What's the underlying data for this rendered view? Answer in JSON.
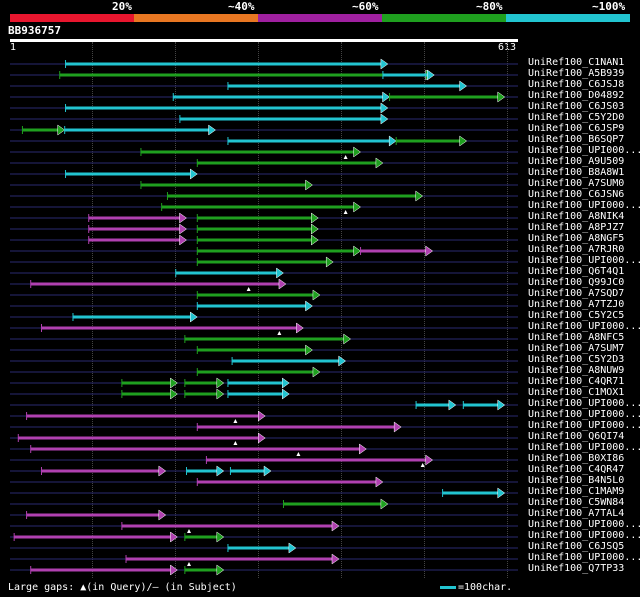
{
  "legend": {
    "segments": [
      {
        "label": "20%",
        "color": "#e8162e"
      },
      {
        "label": "~40%",
        "color": "#e87722"
      },
      {
        "label": "~60%",
        "color": "#a020a0"
      },
      {
        "label": "~80%",
        "color": "#1fa01f"
      },
      {
        "label": "~100%",
        "color": "#22c4d0"
      }
    ]
  },
  "query": {
    "id": "BB936757",
    "start_label": "1",
    "end_label": "613",
    "length": 613
  },
  "hits": [
    {
      "name": "UniRef100_C1NAN1",
      "segs": [
        {
          "s": 67,
          "e": 456,
          "c": "cyan"
        }
      ],
      "marks": []
    },
    {
      "name": "UniRef100_A5B939",
      "segs": [
        {
          "s": 60,
          "e": 510,
          "c": "green"
        },
        {
          "s": 450,
          "e": 512,
          "c": "cyan"
        }
      ],
      "marks": []
    },
    {
      "name": "UniRef100_C6JSJ8",
      "segs": [
        {
          "s": 263,
          "e": 551,
          "c": "cyan"
        }
      ],
      "marks": []
    },
    {
      "name": "UniRef100_D04892",
      "segs": [
        {
          "s": 197,
          "e": 458,
          "c": "cyan"
        },
        {
          "s": 458,
          "e": 597,
          "c": "green"
        }
      ],
      "marks": []
    },
    {
      "name": "UniRef100_C6JS03",
      "segs": [
        {
          "s": 67,
          "e": 456,
          "c": "cyan"
        }
      ],
      "marks": []
    },
    {
      "name": "UniRef100_C5Y2D0",
      "segs": [
        {
          "s": 205,
          "e": 456,
          "c": "cyan"
        }
      ],
      "marks": []
    },
    {
      "name": "UniRef100_C6JSP9",
      "segs": [
        {
          "s": 15,
          "e": 66,
          "c": "green"
        },
        {
          "s": 66,
          "e": 248,
          "c": "cyan"
        }
      ],
      "marks": []
    },
    {
      "name": "UniRef100_B6SQP7",
      "segs": [
        {
          "s": 263,
          "e": 466,
          "c": "cyan"
        },
        {
          "s": 466,
          "e": 551,
          "c": "green"
        }
      ],
      "marks": []
    },
    {
      "name": "UniRef100_UPI000...",
      "segs": [
        {
          "s": 158,
          "e": 423,
          "c": "green"
        }
      ],
      "marks": [
        405
      ]
    },
    {
      "name": "UniRef100_A9U509",
      "segs": [
        {
          "s": 226,
          "e": 450,
          "c": "green"
        }
      ],
      "marks": []
    },
    {
      "name": "UniRef100_B8A8W1",
      "segs": [
        {
          "s": 67,
          "e": 226,
          "c": "cyan"
        }
      ],
      "marks": []
    },
    {
      "name": "UniRef100_A7SUM0",
      "segs": [
        {
          "s": 158,
          "e": 365,
          "c": "green"
        }
      ],
      "marks": []
    },
    {
      "name": "UniRef100_C6JSN6",
      "segs": [
        {
          "s": 190,
          "e": 498,
          "c": "green"
        }
      ],
      "marks": []
    },
    {
      "name": "UniRef100_UPI000...",
      "segs": [
        {
          "s": 183,
          "e": 423,
          "c": "green"
        }
      ],
      "marks": [
        405
      ]
    },
    {
      "name": "UniRef100_A8NIK4",
      "segs": [
        {
          "s": 95,
          "e": 213,
          "c": "magenta"
        },
        {
          "s": 226,
          "e": 372,
          "c": "green"
        }
      ],
      "marks": []
    },
    {
      "name": "UniRef100_A8PJZ7",
      "segs": [
        {
          "s": 95,
          "e": 213,
          "c": "magenta"
        },
        {
          "s": 226,
          "e": 372,
          "c": "green"
        }
      ],
      "marks": []
    },
    {
      "name": "UniRef100_A8NGF5",
      "segs": [
        {
          "s": 95,
          "e": 213,
          "c": "magenta"
        },
        {
          "s": 226,
          "e": 372,
          "c": "green"
        }
      ],
      "marks": []
    },
    {
      "name": "UniRef100_A7RJR0",
      "segs": [
        {
          "s": 226,
          "e": 423,
          "c": "green"
        },
        {
          "s": 423,
          "e": 510,
          "c": "magenta"
        }
      ],
      "marks": []
    },
    {
      "name": "UniRef100_UPI000...",
      "segs": [
        {
          "s": 226,
          "e": 390,
          "c": "green"
        }
      ],
      "marks": []
    },
    {
      "name": "UniRef100_Q6T4Q1",
      "segs": [
        {
          "s": 200,
          "e": 330,
          "c": "cyan"
        }
      ],
      "marks": []
    },
    {
      "name": "UniRef100_Q99JC0",
      "segs": [
        {
          "s": 25,
          "e": 333,
          "c": "magenta"
        }
      ],
      "marks": [
        288
      ]
    },
    {
      "name": "UniRef100_A7SQD7",
      "segs": [
        {
          "s": 226,
          "e": 374,
          "c": "green"
        }
      ],
      "marks": []
    },
    {
      "name": "UniRef100_A7TZJ0",
      "segs": [
        {
          "s": 226,
          "e": 365,
          "c": "cyan"
        }
      ],
      "marks": []
    },
    {
      "name": "UniRef100_C5Y2C5",
      "segs": [
        {
          "s": 76,
          "e": 226,
          "c": "cyan"
        }
      ],
      "marks": []
    },
    {
      "name": "UniRef100_UPI000...",
      "segs": [
        {
          "s": 38,
          "e": 354,
          "c": "magenta"
        }
      ],
      "marks": [
        325
      ]
    },
    {
      "name": "UniRef100_A8NFC5",
      "segs": [
        {
          "s": 211,
          "e": 411,
          "c": "green"
        }
      ],
      "marks": []
    },
    {
      "name": "UniRef100_A7SUM7",
      "segs": [
        {
          "s": 226,
          "e": 365,
          "c": "green"
        }
      ],
      "marks": []
    },
    {
      "name": "UniRef100_C5Y2D3",
      "segs": [
        {
          "s": 268,
          "e": 405,
          "c": "cyan"
        }
      ],
      "marks": []
    },
    {
      "name": "UniRef100_A8NUW9",
      "segs": [
        {
          "s": 226,
          "e": 374,
          "c": "green"
        }
      ],
      "marks": []
    },
    {
      "name": "UniRef100_C4QR71",
      "segs": [
        {
          "s": 135,
          "e": 202,
          "c": "green"
        },
        {
          "s": 211,
          "e": 258,
          "c": "green"
        },
        {
          "s": 263,
          "e": 337,
          "c": "cyan"
        }
      ],
      "marks": []
    },
    {
      "name": "UniRef100_C1MOX1",
      "segs": [
        {
          "s": 135,
          "e": 202,
          "c": "green"
        },
        {
          "s": 211,
          "e": 258,
          "c": "green"
        },
        {
          "s": 263,
          "e": 337,
          "c": "cyan"
        }
      ],
      "marks": []
    },
    {
      "name": "UniRef100_UPI000...",
      "segs": [
        {
          "s": 490,
          "e": 538,
          "c": "cyan"
        },
        {
          "s": 547,
          "e": 597,
          "c": "cyan"
        }
      ],
      "marks": []
    },
    {
      "name": "UniRef100_UPI000...",
      "segs": [
        {
          "s": 20,
          "e": 308,
          "c": "magenta"
        }
      ],
      "marks": [
        272
      ]
    },
    {
      "name": "UniRef100_UPI000...",
      "segs": [
        {
          "s": 226,
          "e": 472,
          "c": "magenta"
        }
      ],
      "marks": []
    },
    {
      "name": "UniRef100_Q6QI74",
      "segs": [
        {
          "s": 10,
          "e": 308,
          "c": "magenta"
        }
      ],
      "marks": [
        272
      ]
    },
    {
      "name": "UniRef100_UPI000...",
      "segs": [
        {
          "s": 25,
          "e": 430,
          "c": "magenta"
        }
      ],
      "marks": [
        348
      ]
    },
    {
      "name": "UniRef100_B0XI86",
      "segs": [
        {
          "s": 237,
          "e": 510,
          "c": "magenta"
        }
      ],
      "marks": [
        498
      ]
    },
    {
      "name": "UniRef100_C4QR47",
      "segs": [
        {
          "s": 38,
          "e": 188,
          "c": "magenta"
        },
        {
          "s": 213,
          "e": 258,
          "c": "cyan"
        },
        {
          "s": 266,
          "e": 315,
          "c": "cyan"
        }
      ],
      "marks": []
    },
    {
      "name": "UniRef100_B4N5L0",
      "segs": [
        {
          "s": 226,
          "e": 450,
          "c": "magenta"
        }
      ],
      "marks": []
    },
    {
      "name": "UniRef100_C1MAM9",
      "segs": [
        {
          "s": 522,
          "e": 597,
          "c": "cyan"
        }
      ],
      "marks": []
    },
    {
      "name": "UniRef100_C5WN84",
      "segs": [
        {
          "s": 330,
          "e": 456,
          "c": "green"
        }
      ],
      "marks": []
    },
    {
      "name": "UniRef100_A7TAL4",
      "segs": [
        {
          "s": 20,
          "e": 188,
          "c": "magenta"
        }
      ],
      "marks": []
    },
    {
      "name": "UniRef100_UPI000...",
      "segs": [
        {
          "s": 135,
          "e": 397,
          "c": "magenta"
        }
      ],
      "marks": [
        216
      ]
    },
    {
      "name": "UniRef100_UPI000...",
      "segs": [
        {
          "s": 5,
          "e": 202,
          "c": "magenta"
        },
        {
          "s": 211,
          "e": 258,
          "c": "green"
        }
      ],
      "marks": []
    },
    {
      "name": "UniRef100_C6JSQ5",
      "segs": [
        {
          "s": 263,
          "e": 345,
          "c": "cyan"
        }
      ],
      "marks": []
    },
    {
      "name": "UniRef100_UPI000...",
      "segs": [
        {
          "s": 140,
          "e": 397,
          "c": "magenta"
        }
      ],
      "marks": [
        216
      ]
    },
    {
      "name": "UniRef100_Q7TP33",
      "segs": [
        {
          "s": 25,
          "e": 202,
          "c": "magenta"
        },
        {
          "s": 211,
          "e": 258,
          "c": "green"
        }
      ],
      "marks": []
    }
  ],
  "colors": {
    "cyan": "#22c4d0",
    "green": "#1fa01f",
    "magenta": "#b040b0",
    "guide": "#2a2a70"
  },
  "footer": {
    "gaps_label": "Large gaps: ▲(in Query)/— (in Subject)",
    "scale_label": "=100char."
  }
}
